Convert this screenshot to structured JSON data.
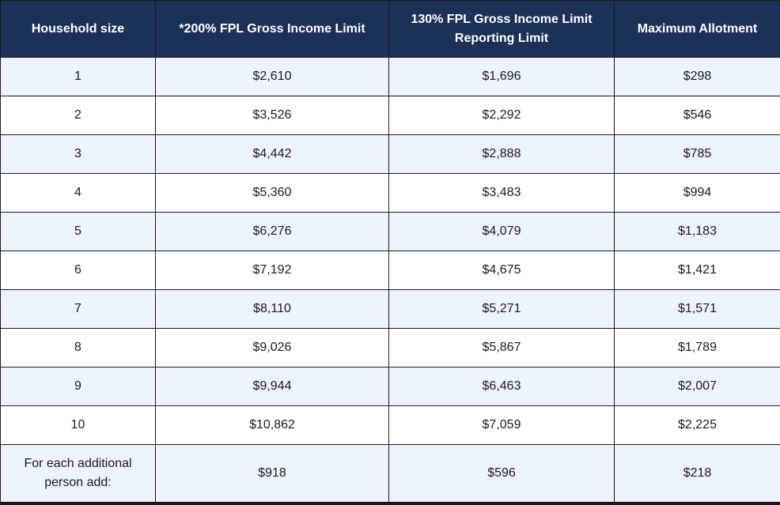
{
  "colors": {
    "header_background": "#1c3158",
    "header_text": "#ffffff",
    "row_stripe": "#ecf3fc",
    "row_plain": "#ffffff",
    "border": "#1b1b1b",
    "body_text": "#1b1b1b"
  },
  "table": {
    "columns": [
      "Household size",
      "*200% FPL Gross Income Limit",
      "130% FPL Gross Income Limit Reporting Limit",
      "Maximum Allotment"
    ],
    "rows": [
      [
        "1",
        "$2,610",
        "$1,696",
        "$298"
      ],
      [
        "2",
        "$3,526",
        "$2,292",
        "$546"
      ],
      [
        "3",
        "$4,442",
        "$2,888",
        "$785"
      ],
      [
        "4",
        "$5,360",
        "$3,483",
        "$994"
      ],
      [
        "5",
        "$6,276",
        "$4,079",
        "$1,183"
      ],
      [
        "6",
        "$7,192",
        "$4,675",
        "$1,421"
      ],
      [
        "7",
        "$8,110",
        "$5,271",
        "$1,571"
      ],
      [
        "8",
        "$9,026",
        "$5,867",
        "$1,789"
      ],
      [
        "9",
        "$9,944",
        "$6,463",
        "$2,007"
      ],
      [
        "10",
        "$10,862",
        "$7,059",
        "$2,225"
      ],
      [
        "For each additional person add:",
        "$918",
        "$596",
        "$218"
      ]
    ]
  },
  "chart_data": {
    "type": "table",
    "title": "",
    "columns": [
      "Household size",
      "*200% FPL Gross Income Limit",
      "130% FPL Gross Income Limit Reporting Limit",
      "Maximum Allotment"
    ],
    "categories": [
      "1",
      "2",
      "3",
      "4",
      "5",
      "6",
      "7",
      "8",
      "9",
      "10",
      "For each additional person add:"
    ],
    "series": [
      {
        "name": "*200% FPL Gross Income Limit",
        "values": [
          2610,
          3526,
          4442,
          5360,
          6276,
          7192,
          8110,
          9026,
          9944,
          10862
        ],
        "each_additional_person": 918
      },
      {
        "name": "130% FPL Gross Income Limit Reporting Limit",
        "values": [
          1696,
          2292,
          2888,
          3483,
          4079,
          4675,
          5271,
          5867,
          6463,
          7059
        ],
        "each_additional_person": 596
      },
      {
        "name": "Maximum Allotment",
        "values": [
          298,
          546,
          785,
          994,
          1183,
          1421,
          1571,
          1789,
          2007,
          2225
        ],
        "each_additional_person": 218
      }
    ]
  }
}
